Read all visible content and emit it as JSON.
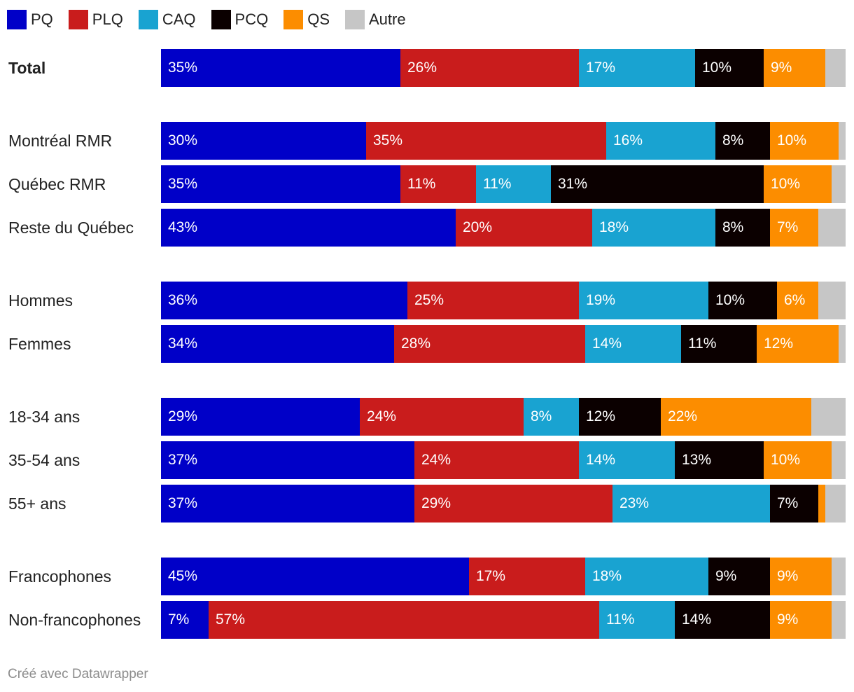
{
  "chart_data": {
    "type": "bar",
    "orientation": "horizontal",
    "stacked": true,
    "series": [
      {
        "name": "PQ",
        "color": "#0000c8"
      },
      {
        "name": "PLQ",
        "color": "#c91c1c"
      },
      {
        "name": "CAQ",
        "color": "#19a3d1"
      },
      {
        "name": "PCQ",
        "color": "#0b0000"
      },
      {
        "name": "QS",
        "color": "#fc8d00"
      },
      {
        "name": "Autre",
        "color": "#c6c6c6"
      }
    ],
    "rows": [
      {
        "label": "Total",
        "bold": true,
        "group": 0,
        "values": [
          35,
          26,
          17,
          10,
          9,
          3
        ],
        "labels": [
          "35%",
          "26%",
          "17%",
          "10%",
          "9%",
          ""
        ]
      },
      {
        "label": "Montréal RMR",
        "group": 1,
        "values": [
          30,
          35,
          16,
          8,
          10,
          1
        ],
        "labels": [
          "30%",
          "35%",
          "16%",
          "8%",
          "10%",
          ""
        ]
      },
      {
        "label": "Québec RMR",
        "group": 1,
        "values": [
          35,
          11,
          11,
          31,
          10,
          2
        ],
        "labels": [
          "35%",
          "11%",
          "11%",
          "31%",
          "10%",
          ""
        ]
      },
      {
        "label": "Reste du Québec",
        "group": 1,
        "values": [
          43,
          20,
          18,
          8,
          7,
          4
        ],
        "labels": [
          "43%",
          "20%",
          "18%",
          "8%",
          "7%",
          ""
        ]
      },
      {
        "label": "Hommes",
        "group": 2,
        "values": [
          36,
          25,
          19,
          10,
          6,
          4
        ],
        "labels": [
          "36%",
          "25%",
          "19%",
          "10%",
          "6%",
          ""
        ]
      },
      {
        "label": "Femmes",
        "group": 2,
        "values": [
          34,
          28,
          14,
          11,
          12,
          1
        ],
        "labels": [
          "34%",
          "28%",
          "14%",
          "11%",
          "12%",
          ""
        ]
      },
      {
        "label": "18-34 ans",
        "group": 3,
        "values": [
          29,
          24,
          8,
          12,
          22,
          5
        ],
        "labels": [
          "29%",
          "24%",
          "8%",
          "12%",
          "22%",
          ""
        ]
      },
      {
        "label": "35-54 ans",
        "group": 3,
        "values": [
          37,
          24,
          14,
          13,
          10,
          2
        ],
        "labels": [
          "37%",
          "24%",
          "14%",
          "13%",
          "10%",
          ""
        ]
      },
      {
        "label": "55+ ans",
        "group": 3,
        "values": [
          37,
          29,
          23,
          7,
          1,
          3
        ],
        "labels": [
          "37%",
          "29%",
          "23%",
          "7%",
          "",
          ""
        ]
      },
      {
        "label": "Francophones",
        "group": 4,
        "values": [
          45,
          17,
          18,
          9,
          9,
          2
        ],
        "labels": [
          "45%",
          "17%",
          "18%",
          "9%",
          "9%",
          ""
        ]
      },
      {
        "label": "Non-francophones",
        "group": 4,
        "values": [
          7,
          57,
          11,
          14,
          9,
          2
        ],
        "labels": [
          "7%",
          "57%",
          "11%",
          "14%",
          "9%",
          ""
        ]
      }
    ],
    "legend_position": "top-left",
    "grid": false
  },
  "footer": "Créé avec Datawrapper"
}
